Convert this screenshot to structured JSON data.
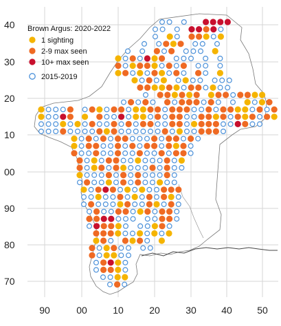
{
  "legend": {
    "title": "Brown Argus:  2020-2022",
    "items": [
      {
        "label": "1 sighting",
        "color": "#f5b400",
        "style": "filled"
      },
      {
        "label": "2-9 max seen",
        "color": "#ef6a23",
        "style": "filled"
      },
      {
        "label": "10+ max seen",
        "color": "#c8102e",
        "style": "filled"
      },
      {
        "label": "2015-2019",
        "color": "#4a90d9",
        "style": "open"
      }
    ]
  },
  "axes": {
    "x_ticks": [
      "90",
      "00",
      "10",
      "20",
      "30",
      "40",
      "50"
    ],
    "y_ticks": [
      "40",
      "30",
      "20",
      "10",
      "00",
      "90",
      "80",
      "70"
    ],
    "gridline_color": "#d6d6d6",
    "grid": true
  },
  "map": {
    "outline_color": "#777777",
    "river_color": "#444444"
  }
}
